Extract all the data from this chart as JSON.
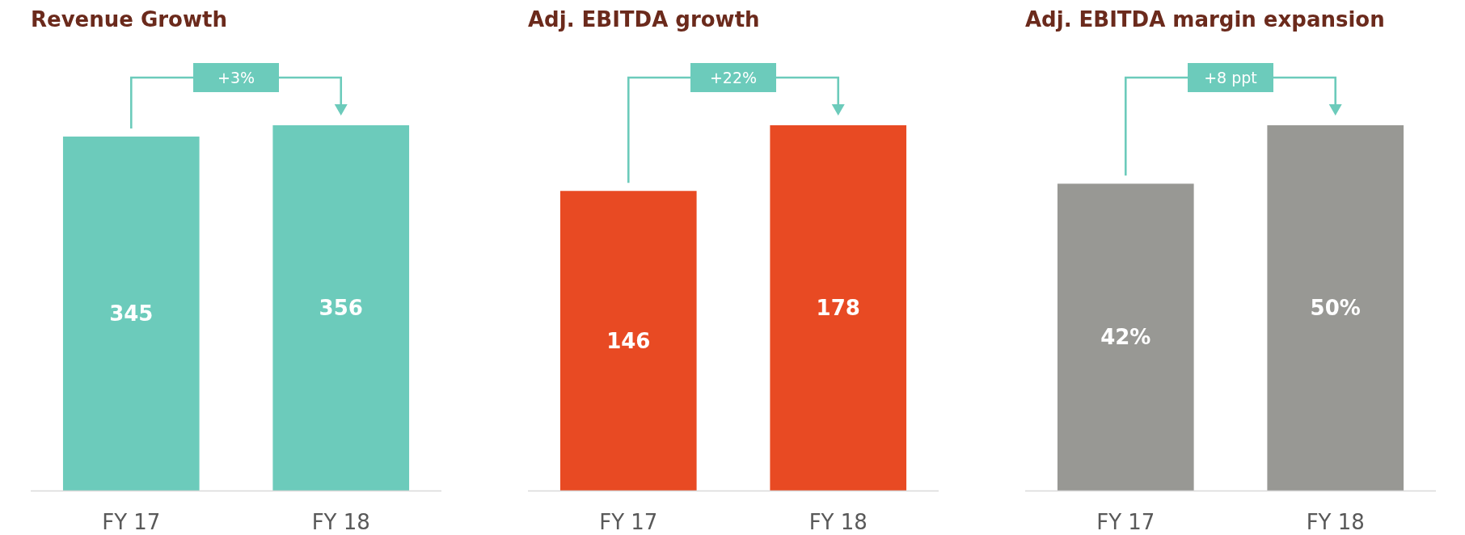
{
  "chart_data": [
    {
      "type": "bar",
      "title": "Revenue Growth",
      "categories": [
        "FY 17",
        "FY 18"
      ],
      "values": [
        345,
        356
      ],
      "color": "#6ccbbb",
      "data_labels": true,
      "annotations": [
        "+3%"
      ]
    },
    {
      "type": "bar",
      "title": "Adj. EBITDA growth",
      "categories": [
        "FY 17",
        "FY 18"
      ],
      "values": [
        146,
        178
      ],
      "color": "#e84a23",
      "data_labels": true,
      "annotations": [
        "+22%"
      ]
    },
    {
      "type": "bar",
      "title": "Adj. EBITDA margin expansion",
      "categories": [
        "FY 17",
        "FY 18"
      ],
      "values": [
        42,
        50
      ],
      "color": "#989894",
      "data_labels": true,
      "value_labels": [
        "42%",
        "50%"
      ],
      "annotations": [
        "+8 ppt"
      ]
    }
  ]
}
